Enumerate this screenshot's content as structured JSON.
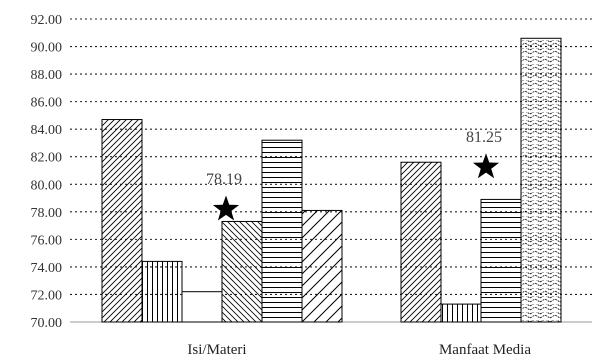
{
  "chart_data": {
    "type": "bar",
    "categories": [
      "Isi/Materi",
      "Manfaat Media"
    ],
    "series": [
      {
        "values": [
          84.7,
          81.6
        ],
        "pattern": "diag-right"
      },
      {
        "values": [
          74.4,
          71.3
        ],
        "pattern": "vertical"
      },
      {
        "values": [
          72.2,
          null
        ],
        "pattern": "none"
      },
      {
        "values": [
          77.3,
          78.9
        ],
        "pattern": "diag-left-light"
      },
      {
        "values": [
          83.2,
          90.6
        ],
        "pattern": "horizontal"
      },
      {
        "values": [
          78.1,
          null
        ],
        "pattern": "diag-right-wide"
      }
    ],
    "manfaat_extra_pattern": "wave",
    "ylim": [
      70,
      92
    ],
    "yticks": [
      "70.00",
      "72.00",
      "74.00",
      "76.00",
      "78.00",
      "80.00",
      "82.00",
      "84.00",
      "86.00",
      "88.00",
      "90.00",
      "92.00"
    ],
    "grid": true,
    "grid_style": "dotted",
    "annotations": [
      {
        "text": "78.19",
        "category": "Isi/Materi",
        "y": 78.19,
        "marker": "star"
      },
      {
        "text": "81.25",
        "category": "Manfaat Media",
        "y": 81.25,
        "marker": "star"
      }
    ],
    "xlabel": "",
    "ylabel": ""
  }
}
